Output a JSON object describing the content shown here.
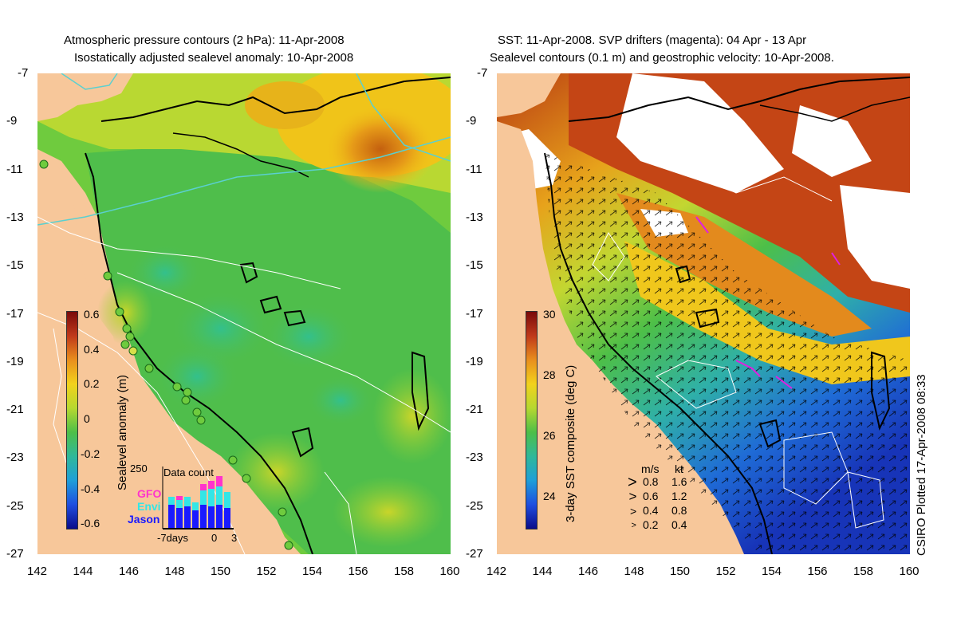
{
  "left_panel": {
    "title_line1": "Atmospheric pressure contours (2 hPa): 11-Apr-2008",
    "title_line2": "Isostatically adjusted sealevel anomaly: 10-Apr-2008",
    "colorbar_title": "Sealevel anomaly (m)",
    "colorbar_ticks": [
      "0.6",
      "0.4",
      "0.2",
      "0",
      "-0.2",
      "-0.4",
      "-0.6"
    ],
    "inset": {
      "title": "Data count",
      "y_max": "250",
      "x_labels": [
        "-7days",
        "0",
        "3"
      ],
      "satellites": [
        {
          "name": "GFO",
          "color": "#ff33cc"
        },
        {
          "name": "Envi",
          "color": "#33e6e6"
        },
        {
          "name": "Jason",
          "color": "#1a1aff"
        }
      ]
    }
  },
  "right_panel": {
    "title_line1": "SST: 11-Apr-2008. SVP drifters (magenta): 04 Apr - 13 Apr",
    "title_line2": "Sealevel contours (0.1 m) and geostrophic velocity: 10-Apr-2008.",
    "colorbar_title": "3-day SST composite (deg C)",
    "colorbar_ticks": [
      "30",
      "28",
      "26",
      "24"
    ],
    "velocity_legend": {
      "header_ms": "m/s",
      "header_kt": "kt",
      "rows": [
        {
          "ms": "0.8",
          "kt": "1.6"
        },
        {
          "ms": "0.6",
          "kt": "1.2"
        },
        {
          "ms": "0.4",
          "kt": "0.8"
        },
        {
          "ms": "0.2",
          "kt": "0.4"
        }
      ]
    }
  },
  "axes": {
    "y_ticks": [
      "-7",
      "-9",
      "-11",
      "-13",
      "-15",
      "-17",
      "-19",
      "-21",
      "-23",
      "-25",
      "-27"
    ],
    "x_ticks": [
      "142",
      "144",
      "146",
      "148",
      "150",
      "152",
      "154",
      "156",
      "158",
      "160"
    ]
  },
  "credit": "CSIRO Plotted 17-Apr-2008 08:33",
  "colors": {
    "land": "#f7c79a",
    "ocean_green": "#55c43c",
    "cloud_white": "#ffffff",
    "warm_sst": "#b83a12",
    "cool_sst": "#1f6bd6"
  }
}
